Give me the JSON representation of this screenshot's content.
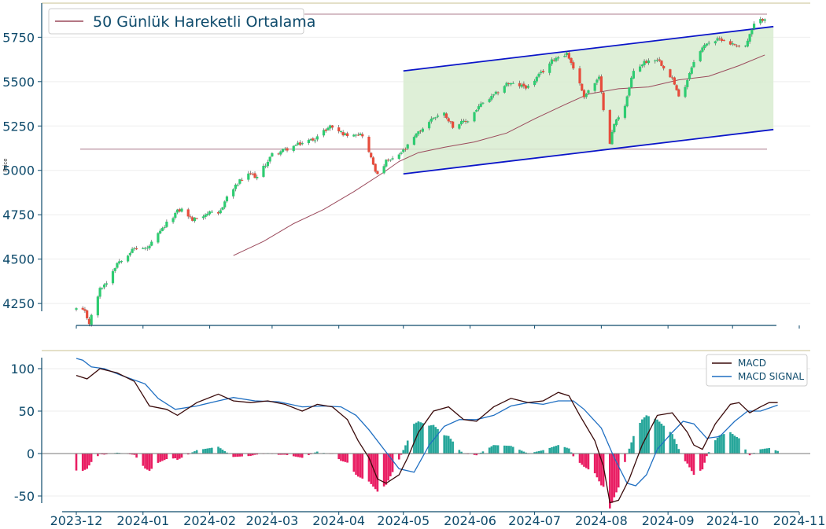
{
  "colors": {
    "up": "#2ecc71",
    "down": "#e74c3c",
    "ma": "#9b4a5c",
    "channel_line": "#0b15c9",
    "channel_fill": "#d8ecd0",
    "hline": "#c9a9b4",
    "macd": "#3a0a0a",
    "signal": "#1f6fc2",
    "hist_pos": "#26a69a",
    "hist_neg": "#e91e63",
    "axis": "#0d4a6b",
    "grid": "#eeeeee",
    "border_top": "#c8c090"
  },
  "chart_data": [
    {
      "type": "candlestick",
      "ylabel": "Price",
      "ylim": [
        4100,
        5880
      ],
      "yticks": [
        4250,
        4500,
        4750,
        5000,
        5250,
        5500,
        5750
      ],
      "grid": true,
      "legend": {
        "position": "top-left",
        "entries": [
          "50 Günlük Hareketli Ortalama"
        ]
      },
      "x_start": "2023-12-01",
      "x_end": "2024-10-16",
      "anchors": [
        [
          "2023-12-01",
          4220
        ],
        [
          "2023-12-05",
          4200
        ],
        [
          "2023-12-07",
          4140
        ],
        [
          "2023-12-12",
          4330
        ],
        [
          "2023-12-15",
          4370
        ],
        [
          "2023-12-20",
          4480
        ],
        [
          "2023-12-28",
          4560
        ],
        [
          "2024-01-03",
          4560
        ],
        [
          "2024-01-05",
          4590
        ],
        [
          "2024-01-12",
          4700
        ],
        [
          "2024-01-17",
          4770
        ],
        [
          "2024-01-19",
          4780
        ],
        [
          "2024-01-24",
          4720
        ],
        [
          "2024-01-31",
          4760
        ],
        [
          "2024-02-05",
          4750
        ],
        [
          "2024-02-09",
          4850
        ],
        [
          "2024-02-15",
          4940
        ],
        [
          "2024-02-20",
          4980
        ],
        [
          "2024-02-23",
          4960
        ],
        [
          "2024-03-01",
          5090
        ],
        [
          "2024-03-08",
          5120
        ],
        [
          "2024-03-14",
          5150
        ],
        [
          "2024-03-21",
          5180
        ],
        [
          "2024-03-28",
          5250
        ],
        [
          "2024-04-04",
          5200
        ],
        [
          "2024-04-08",
          5210
        ],
        [
          "2024-04-12",
          5200
        ],
        [
          "2024-04-15",
          5100
        ],
        [
          "2024-04-19",
          4970
        ],
        [
          "2024-04-23",
          5050
        ],
        [
          "2024-04-26",
          5060
        ],
        [
          "2024-05-02",
          5120
        ],
        [
          "2024-05-07",
          5200
        ],
        [
          "2024-05-15",
          5300
        ],
        [
          "2024-05-20",
          5320
        ],
        [
          "2024-05-24",
          5250
        ],
        [
          "2024-05-31",
          5280
        ],
        [
          "2024-06-05",
          5360
        ],
        [
          "2024-06-12",
          5420
        ],
        [
          "2024-06-18",
          5490
        ],
        [
          "2024-06-28",
          5470
        ],
        [
          "2024-07-05",
          5560
        ],
        [
          "2024-07-10",
          5630
        ],
        [
          "2024-07-16",
          5660
        ],
        [
          "2024-07-19",
          5580
        ],
        [
          "2024-07-24",
          5420
        ],
        [
          "2024-07-31",
          5520
        ],
        [
          "2024-08-02",
          5350
        ],
        [
          "2024-08-05",
          5160
        ],
        [
          "2024-08-07",
          5260
        ],
        [
          "2024-08-12",
          5370
        ],
        [
          "2024-08-16",
          5560
        ],
        [
          "2024-08-21",
          5610
        ],
        [
          "2024-08-27",
          5630
        ],
        [
          "2024-09-03",
          5520
        ],
        [
          "2024-09-06",
          5410
        ],
        [
          "2024-09-09",
          5480
        ],
        [
          "2024-09-13",
          5620
        ],
        [
          "2024-09-19",
          5720
        ],
        [
          "2024-09-26",
          5740
        ],
        [
          "2024-10-01",
          5710
        ],
        [
          "2024-10-07",
          5700
        ],
        [
          "2024-10-11",
          5820
        ],
        [
          "2024-10-16",
          5860
        ]
      ],
      "moving_average_50": {
        "name": "50 Günlük Hareketli Ortalama",
        "points": [
          [
            "2024-02-12",
            4520
          ],
          [
            "2024-02-26",
            4600
          ],
          [
            "2024-03-11",
            4700
          ],
          [
            "2024-03-25",
            4780
          ],
          [
            "2024-04-08",
            4880
          ],
          [
            "2024-04-22",
            4990
          ],
          [
            "2024-04-29",
            5050
          ],
          [
            "2024-05-08",
            5100
          ],
          [
            "2024-05-20",
            5130
          ],
          [
            "2024-06-03",
            5160
          ],
          [
            "2024-06-18",
            5210
          ],
          [
            "2024-07-01",
            5290
          ],
          [
            "2024-07-15",
            5370
          ],
          [
            "2024-07-26",
            5430
          ],
          [
            "2024-08-09",
            5460
          ],
          [
            "2024-08-23",
            5470
          ],
          [
            "2024-09-06",
            5510
          ],
          [
            "2024-09-20",
            5530
          ],
          [
            "2024-10-04",
            5590
          ],
          [
            "2024-10-16",
            5650
          ]
        ]
      },
      "horizontal_lines": [
        5120,
        5880
      ],
      "channel": {
        "start": "2024-05-01",
        "end": "2024-10-20",
        "upper": [
          5560,
          5810
        ],
        "lower": [
          4980,
          5230
        ]
      }
    },
    {
      "type": "line",
      "ylim": [
        -62,
        115
      ],
      "yticks": [
        100,
        50,
        0,
        -50
      ],
      "xticks": [
        "2023-12",
        "2024-01",
        "2024-02",
        "2024-03",
        "2024-04",
        "2024-05",
        "2024-06",
        "2024-07",
        "2024-08",
        "2024-09",
        "2024-10",
        "2024-11"
      ],
      "x_range": [
        "2023-11-24",
        "2024-11-01"
      ],
      "legend": {
        "position": "top-right",
        "entries": [
          "MACD",
          "MACD SIGNAL"
        ]
      },
      "zero_line": true,
      "series": [
        {
          "name": "MACD",
          "points": [
            [
              "2023-12-01",
              92
            ],
            [
              "2023-12-06",
              88
            ],
            [
              "2023-12-12",
              100
            ],
            [
              "2023-12-20",
              95
            ],
            [
              "2023-12-28",
              85
            ],
            [
              "2024-01-04",
              56
            ],
            [
              "2024-01-12",
              52
            ],
            [
              "2024-01-17",
              45
            ],
            [
              "2024-01-26",
              60
            ],
            [
              "2024-02-05",
              70
            ],
            [
              "2024-02-12",
              62
            ],
            [
              "2024-02-20",
              60
            ],
            [
              "2024-02-28",
              62
            ],
            [
              "2024-03-07",
              58
            ],
            [
              "2024-03-15",
              50
            ],
            [
              "2024-03-22",
              58
            ],
            [
              "2024-03-29",
              55
            ],
            [
              "2024-04-05",
              40
            ],
            [
              "2024-04-10",
              15
            ],
            [
              "2024-04-15",
              -5
            ],
            [
              "2024-04-19",
              -30
            ],
            [
              "2024-04-23",
              -35
            ],
            [
              "2024-04-29",
              -25
            ],
            [
              "2024-05-03",
              -5
            ],
            [
              "2024-05-08",
              25
            ],
            [
              "2024-05-15",
              50
            ],
            [
              "2024-05-22",
              55
            ],
            [
              "2024-05-29",
              40
            ],
            [
              "2024-06-04",
              38
            ],
            [
              "2024-06-12",
              55
            ],
            [
              "2024-06-20",
              65
            ],
            [
              "2024-06-28",
              60
            ],
            [
              "2024-07-05",
              62
            ],
            [
              "2024-07-12",
              72
            ],
            [
              "2024-07-17",
              68
            ],
            [
              "2024-07-22",
              45
            ],
            [
              "2024-07-29",
              15
            ],
            [
              "2024-08-02",
              -15
            ],
            [
              "2024-08-05",
              -58
            ],
            [
              "2024-08-09",
              -55
            ],
            [
              "2024-08-14",
              -30
            ],
            [
              "2024-08-20",
              10
            ],
            [
              "2024-08-27",
              45
            ],
            [
              "2024-09-03",
              48
            ],
            [
              "2024-09-10",
              25
            ],
            [
              "2024-09-13",
              10
            ],
            [
              "2024-09-17",
              5
            ],
            [
              "2024-09-23",
              35
            ],
            [
              "2024-09-30",
              58
            ],
            [
              "2024-10-04",
              60
            ],
            [
              "2024-10-09",
              48
            ],
            [
              "2024-10-14",
              55
            ],
            [
              "2024-10-18",
              60
            ],
            [
              "2024-10-22",
              60
            ]
          ]
        },
        {
          "name": "MACD SIGNAL",
          "points": [
            [
              "2023-12-01",
              112
            ],
            [
              "2023-12-04",
              110
            ],
            [
              "2023-12-08",
              102
            ],
            [
              "2023-12-14",
              100
            ],
            [
              "2023-12-22",
              92
            ],
            [
              "2024-01-02",
              82
            ],
            [
              "2024-01-08",
              65
            ],
            [
              "2024-01-16",
              52
            ],
            [
              "2024-01-26",
              56
            ],
            [
              "2024-02-05",
              62
            ],
            [
              "2024-02-12",
              66
            ],
            [
              "2024-02-22",
              62
            ],
            [
              "2024-03-04",
              61
            ],
            [
              "2024-03-15",
              55
            ],
            [
              "2024-03-25",
              56
            ],
            [
              "2024-04-02",
              55
            ],
            [
              "2024-04-09",
              45
            ],
            [
              "2024-04-15",
              28
            ],
            [
              "2024-04-22",
              5
            ],
            [
              "2024-04-29",
              -18
            ],
            [
              "2024-05-06",
              -22
            ],
            [
              "2024-05-13",
              10
            ],
            [
              "2024-05-20",
              32
            ],
            [
              "2024-05-27",
              40
            ],
            [
              "2024-06-04",
              40
            ],
            [
              "2024-06-12",
              45
            ],
            [
              "2024-06-20",
              56
            ],
            [
              "2024-06-28",
              60
            ],
            [
              "2024-07-05",
              58
            ],
            [
              "2024-07-12",
              62
            ],
            [
              "2024-07-19",
              62
            ],
            [
              "2024-07-24",
              52
            ],
            [
              "2024-08-01",
              30
            ],
            [
              "2024-08-07",
              -5
            ],
            [
              "2024-08-13",
              -35
            ],
            [
              "2024-08-17",
              -38
            ],
            [
              "2024-08-22",
              -25
            ],
            [
              "2024-08-27",
              5
            ],
            [
              "2024-09-03",
              25
            ],
            [
              "2024-09-08",
              38
            ],
            [
              "2024-09-13",
              35
            ],
            [
              "2024-09-19",
              18
            ],
            [
              "2024-09-25",
              20
            ],
            [
              "2024-10-02",
              38
            ],
            [
              "2024-10-08",
              50
            ],
            [
              "2024-10-14",
              50
            ],
            [
              "2024-10-22",
              57
            ]
          ]
        },
        {
          "name": "Histogram",
          "type": "bar",
          "from": "MACD - MACD SIGNAL"
        }
      ]
    }
  ]
}
